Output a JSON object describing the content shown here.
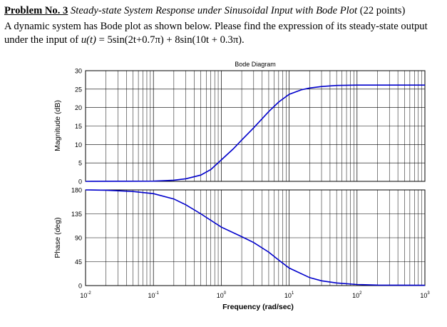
{
  "problem": {
    "number": "Problem No. 3",
    "topic": "Steady-state System Response under Sinusoidal Input with Bode Plot",
    "points": "(22 points)",
    "statement_intro": "A dynamic system has Bode plot as shown below. Please find the expression of its steady-state output under the input of",
    "input_func": "u(t)",
    "input_eq": "= 5sin(2t+0.7π) + 8sin(10t + 0.3π)."
  },
  "chart_data": {
    "type": "line",
    "title": "Bode Diagram",
    "xlabel": "Frequency (rad/sec)",
    "x_scale": "log",
    "xlim": [
      0.01,
      1000
    ],
    "x_ticks": [
      {
        "base": "10",
        "exp": "-2"
      },
      {
        "base": "10",
        "exp": "-1"
      },
      {
        "base": "10",
        "exp": "0"
      },
      {
        "base": "10",
        "exp": "1"
      },
      {
        "base": "10",
        "exp": "2"
      },
      {
        "base": "10",
        "exp": "3"
      }
    ],
    "grid": true,
    "line_color": "#0000cc",
    "magnitude": {
      "ylabel": "Magnitude (dB)",
      "ylim": [
        0,
        30
      ],
      "y_ticks": [
        "0",
        "5",
        "10",
        "15",
        "20",
        "25",
        "30"
      ],
      "x": [
        0.01,
        0.1,
        0.2,
        0.3,
        0.5,
        0.7,
        1,
        1.5,
        2,
        3,
        5,
        7,
        10,
        15,
        20,
        30,
        50,
        100,
        1000
      ],
      "y": [
        0,
        0.05,
        0.3,
        0.7,
        1.7,
        3.2,
        5.8,
        8.8,
        11.2,
        14.5,
        18.9,
        21.5,
        23.6,
        24.8,
        25.3,
        25.7,
        26,
        26.1,
        26.1
      ]
    },
    "phase": {
      "ylabel": "Phase (deg)",
      "ylim": [
        0,
        180
      ],
      "y_ticks": [
        "0",
        "45",
        "90",
        "135",
        "180"
      ],
      "x": [
        0.01,
        0.02,
        0.05,
        0.1,
        0.2,
        0.3,
        0.5,
        1,
        2,
        3,
        5,
        7,
        10,
        20,
        30,
        50,
        100,
        200,
        1000
      ],
      "y": [
        180,
        179.5,
        177,
        173,
        163,
        152,
        135,
        110,
        92,
        81,
        63,
        48,
        33,
        15,
        9,
        5,
        2,
        1,
        0.5
      ]
    }
  }
}
